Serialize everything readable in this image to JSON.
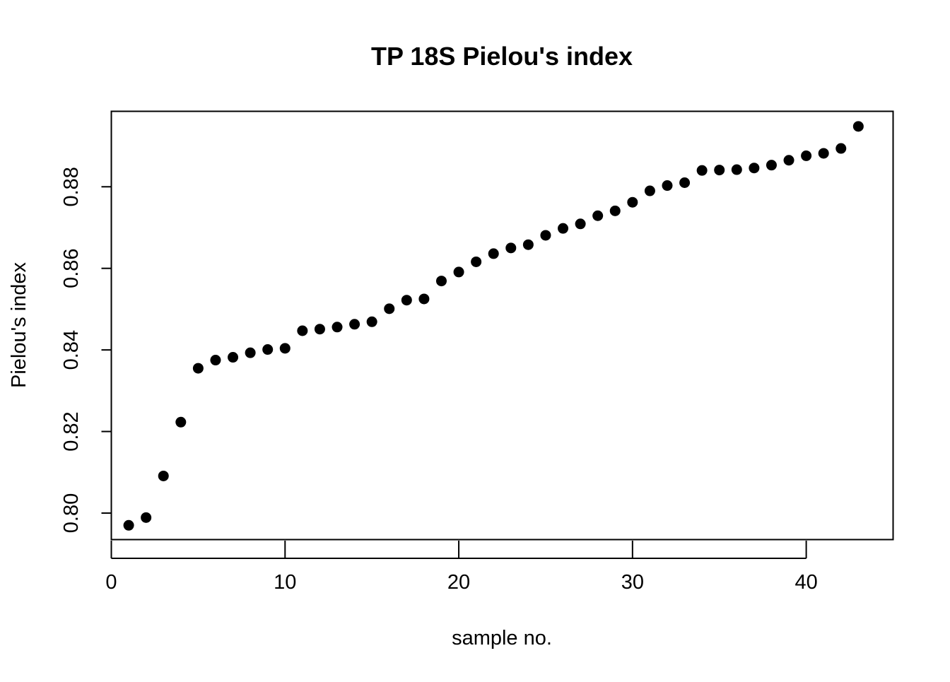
{
  "chart_data": {
    "type": "scatter",
    "title": "TP 18S Pielou's index",
    "xlabel": "sample no.",
    "ylabel": "Pielou's index",
    "xlim": [
      0,
      45
    ],
    "ylim": [
      0.7935,
      0.8985
    ],
    "x_ticks": [
      0,
      10,
      20,
      30,
      40
    ],
    "y_ticks": [
      0.8,
      0.82,
      0.84,
      0.86,
      0.88
    ],
    "x_tick_labels": [
      "0",
      "10",
      "20",
      "30",
      "40"
    ],
    "y_tick_labels": [
      "0.80",
      "0.82",
      "0.84",
      "0.86",
      "0.88"
    ],
    "grid": false,
    "legend": "none",
    "marker_color": "#000000",
    "series": [
      {
        "x": [
          1,
          2,
          3,
          4,
          5,
          6,
          7,
          8,
          9,
          10,
          11,
          12,
          13,
          14,
          15,
          16,
          17,
          18,
          19,
          20,
          21,
          22,
          23,
          24,
          25,
          26,
          27,
          28,
          29,
          30,
          31,
          32,
          33,
          34,
          35,
          36,
          37,
          38,
          39,
          40,
          41,
          42,
          43
        ],
        "y": [
          0.797,
          0.7989,
          0.8091,
          0.8223,
          0.8355,
          0.8375,
          0.8382,
          0.8393,
          0.8401,
          0.8404,
          0.8447,
          0.8451,
          0.8456,
          0.8463,
          0.8469,
          0.8501,
          0.8522,
          0.8525,
          0.8569,
          0.8591,
          0.8616,
          0.8636,
          0.865,
          0.8658,
          0.8681,
          0.8698,
          0.8709,
          0.8729,
          0.8741,
          0.8762,
          0.879,
          0.8803,
          0.881,
          0.884,
          0.8841,
          0.8842,
          0.8846,
          0.8853,
          0.8865,
          0.8876,
          0.8882,
          0.8894,
          0.8948
        ]
      }
    ]
  }
}
